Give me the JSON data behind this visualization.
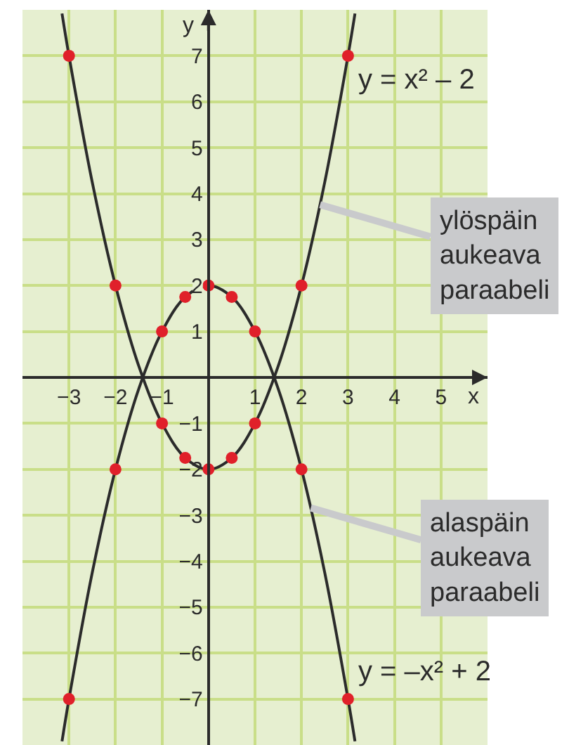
{
  "chart_data": {
    "type": "line",
    "xlabel": "x",
    "ylabel": "y",
    "xlim": [
      -4,
      6
    ],
    "ylim": [
      -8,
      8
    ],
    "xticks": [
      -3,
      -2,
      -1,
      {
        "value": 0,
        "label": null
      },
      1,
      2,
      3,
      4,
      5
    ],
    "yticks": [
      -7,
      -6,
      -5,
      -4,
      -3,
      -2,
      -1,
      {
        "value": 0,
        "label": null
      },
      1,
      2,
      3,
      4,
      5,
      6,
      7
    ],
    "grid": true,
    "series": [
      {
        "type": "line",
        "color": "#2b2b2b",
        "marker": "none",
        "x": [
          -3.15,
          -3,
          -2.5,
          -2,
          -1.5,
          -1,
          -0.5,
          0,
          0.5,
          1,
          1.5,
          2,
          2.5,
          3,
          3.15
        ],
        "values": [
          7.92,
          7,
          4.25,
          2,
          0.25,
          -1,
          -1.75,
          -2,
          -1.75,
          -1,
          0.25,
          2,
          4.25,
          7,
          7.92
        ]
      },
      {
        "type": "line",
        "color": "#2b2b2b",
        "marker": "none",
        "x": [
          -3.15,
          -3,
          -2.5,
          -2,
          -1.5,
          -1,
          -0.5,
          0,
          0.5,
          1,
          1.5,
          2,
          2.5,
          3,
          3.15
        ],
        "values": [
          -7.92,
          -7,
          -4.25,
          -2,
          -0.25,
          1,
          1.75,
          2,
          1.75,
          1,
          -0.25,
          -2,
          -4.25,
          -7,
          -7.92
        ]
      },
      {
        "type": "scatter",
        "color": "#e0202a",
        "marker": "circle",
        "x": [
          -3,
          -2,
          -1,
          -0.5,
          0,
          0.5,
          1,
          2,
          3
        ],
        "values": [
          7,
          2,
          -1,
          -1.75,
          -2,
          -1.75,
          -1,
          2,
          7
        ]
      },
      {
        "type": "scatter",
        "color": "#e0202a",
        "marker": "circle",
        "x": [
          -3,
          -2,
          -1,
          -0.5,
          0,
          0.5,
          1,
          2,
          3
        ],
        "values": [
          -7,
          -2,
          1,
          1.75,
          2,
          1.75,
          1,
          -2,
          -7
        ]
      }
    ],
    "annotations": [
      {
        "text": "y = x² – 2",
        "x": 3,
        "y": 7
      },
      {
        "text": "y = –x² + 2",
        "x": 3,
        "y": -7
      },
      {
        "text": "ylöspäin\naukeava\nparaabeli",
        "x": 2.4,
        "y": 3.76
      },
      {
        "text": "alaspäin\naukeava\nparaabeli",
        "x": 2.2,
        "y": -2.84
      }
    ]
  }
}
